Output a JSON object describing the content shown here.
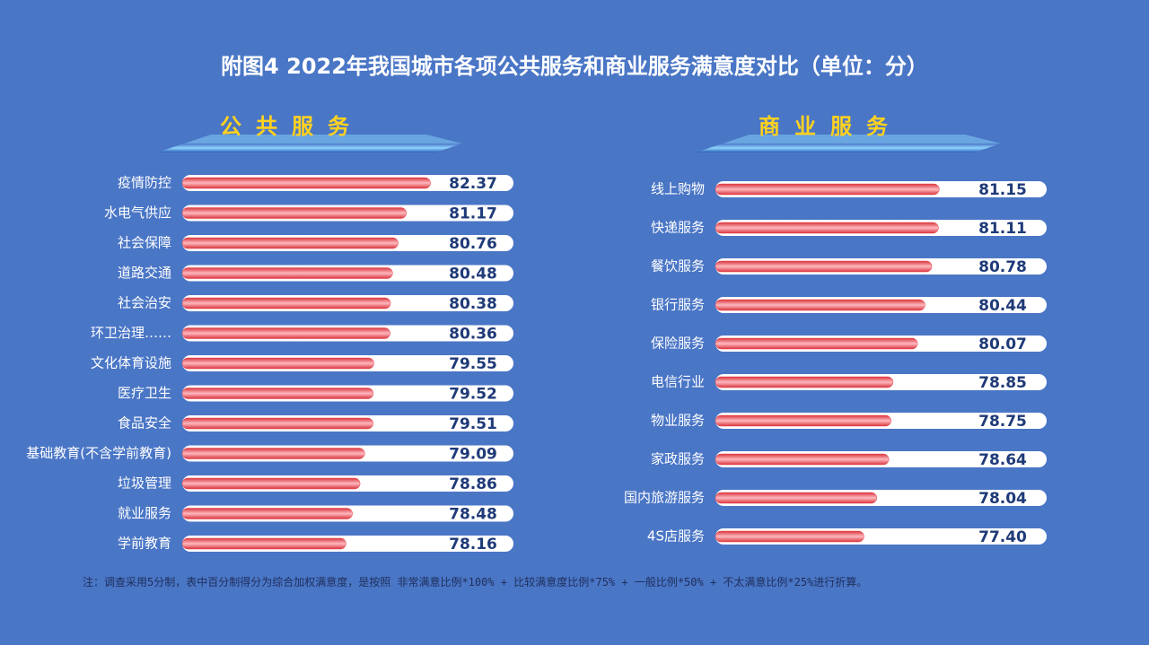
{
  "title": "附图4  2022年我国城市各项公共服务和商业服务满意度对比（单位：分）",
  "note": "注：调查采用5分制，表中百分制得分为综合加权满意度，是按照 非常满意比例*100% + 比较满意度比例*75% + 一般比例*50% + 不太满意比例*25%进行折算。",
  "chart_data": [
    {
      "type": "bar",
      "title": "公共服务",
      "color": "#e8414a",
      "xlim": [
        70,
        86.5
      ],
      "categories": [
        "疫情防控",
        "水电气供应",
        "社会保障",
        "道路交通",
        "社会治安",
        "环卫治理……",
        "文化体育设施",
        "医疗卫生",
        "食品安全",
        "基础教育(不含学前教育)",
        "垃圾管理",
        "就业服务",
        "学前教育"
      ],
      "values": [
        82.37,
        81.17,
        80.76,
        80.48,
        80.38,
        80.36,
        79.55,
        79.52,
        79.51,
        79.09,
        78.86,
        78.48,
        78.16
      ],
      "value_labels": [
        "82.37",
        "81.17",
        "80.76",
        "80.48",
        "80.38",
        "80.36",
        "79.55",
        "79.52",
        "79.51",
        "79.09",
        "78.86",
        "78.48",
        "78.16"
      ]
    },
    {
      "type": "bar",
      "title": "商业服务",
      "color": "#e8414a",
      "xlim": [
        70,
        86.5
      ],
      "categories": [
        "线上购物",
        "快递服务",
        "餐饮服务",
        "银行服务",
        "保险服务",
        "电信行业",
        "物业服务",
        "家政服务",
        "国内旅游服务",
        "4S店服务"
      ],
      "values": [
        81.15,
        81.11,
        80.78,
        80.44,
        80.07,
        78.85,
        78.75,
        78.64,
        78.04,
        77.4
      ],
      "value_labels": [
        "81.15",
        "81.11",
        "80.78",
        "80.44",
        "80.07",
        "78.85",
        "78.75",
        "78.64",
        "78.04",
        "77.40"
      ]
    }
  ]
}
